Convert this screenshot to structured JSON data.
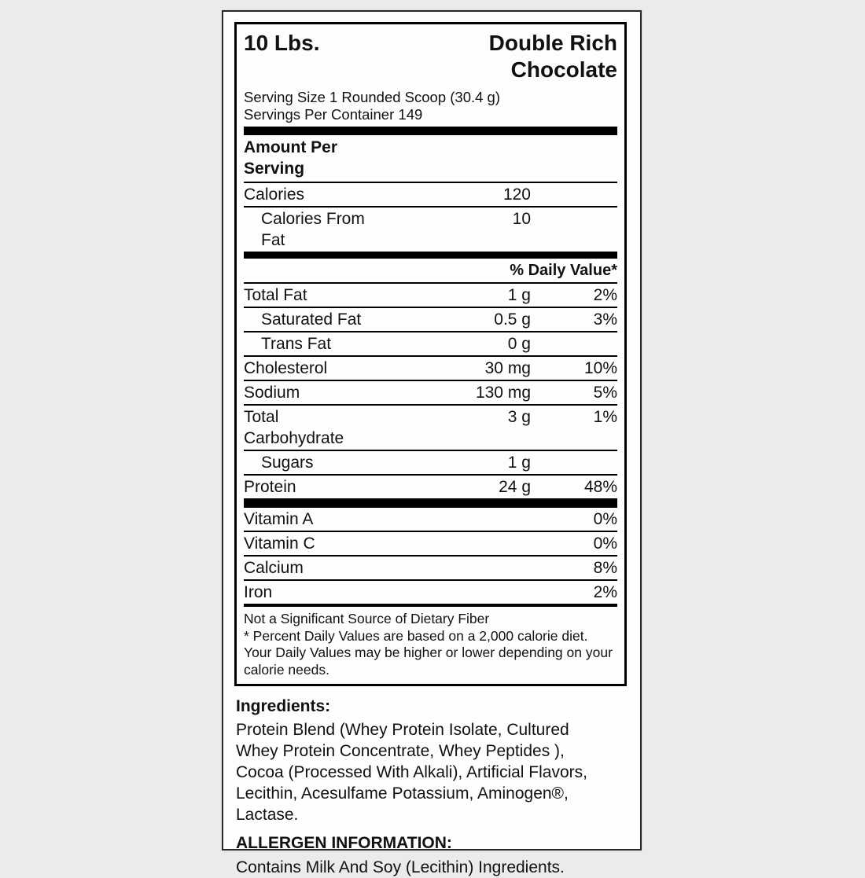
{
  "colors": {
    "page_bg": "#ebebeb",
    "card_bg": "#fdfdfd",
    "text": "#111111",
    "divider": "#000000"
  },
  "header": {
    "weight": "10 Lbs.",
    "flavor_line1": "Double Rich",
    "flavor_line2": "Chocolate"
  },
  "serving": {
    "size": "Serving Size 1 Rounded Scoop (30.4 g)",
    "per_container": "Servings Per Container 149"
  },
  "amount_per": {
    "line1": "Amount Per",
    "line2": "Serving"
  },
  "calorie_rows": [
    {
      "label": "Calories",
      "amount": "120",
      "dv": "",
      "indent": false
    },
    {
      "label": "Calories From Fat",
      "amount": "10",
      "dv": "",
      "indent": true
    }
  ],
  "daily_value_header": "% Daily Value*",
  "nutrient_rows": [
    {
      "label": "Total Fat",
      "amount": "1 g",
      "dv": "2%",
      "indent": false
    },
    {
      "label": "Saturated Fat",
      "amount": "0.5 g",
      "dv": "3%",
      "indent": true
    },
    {
      "label": "Trans Fat",
      "amount": "0 g",
      "dv": "",
      "indent": true
    },
    {
      "label": "Cholesterol",
      "amount": "30 mg",
      "dv": "10%",
      "indent": false
    },
    {
      "label": "Sodium",
      "amount": "130 mg",
      "dv": "5%",
      "indent": false
    },
    {
      "label": "Total Carbohydrate",
      "amount": "3 g",
      "dv": "1%",
      "indent": false
    },
    {
      "label": "Sugars",
      "amount": "1 g",
      "dv": "",
      "indent": true
    },
    {
      "label": "Protein",
      "amount": "24 g",
      "dv": "48%",
      "indent": false
    }
  ],
  "vitamin_rows": [
    {
      "label": "Vitamin A",
      "amount": "",
      "dv": "0%",
      "indent": false
    },
    {
      "label": "Vitamin C",
      "amount": "",
      "dv": "0%",
      "indent": false
    },
    {
      "label": "Calcium",
      "amount": "",
      "dv": "8%",
      "indent": false
    },
    {
      "label": "Iron",
      "amount": "",
      "dv": "2%",
      "indent": false
    }
  ],
  "footnote": {
    "line1": "Not a Significant Source of Dietary Fiber",
    "line2": "* Percent Daily Values are based on a 2,000 calorie diet. Your Daily Values may be higher or lower depending on your calorie needs."
  },
  "ingredients": {
    "heading": "Ingredients:",
    "text": "Protein Blend (Whey Protein Isolate, Cultured Whey Protein Concentrate, Whey Peptides ), Cocoa (Processed With Alkali), Artificial Flavors, Lecithin, Acesulfame Potassium, Aminogen®, Lactase."
  },
  "allergen": {
    "heading": "ALLERGEN INFORMATION:",
    "text": "Contains Milk And Soy (Lecithin) Ingredients."
  }
}
